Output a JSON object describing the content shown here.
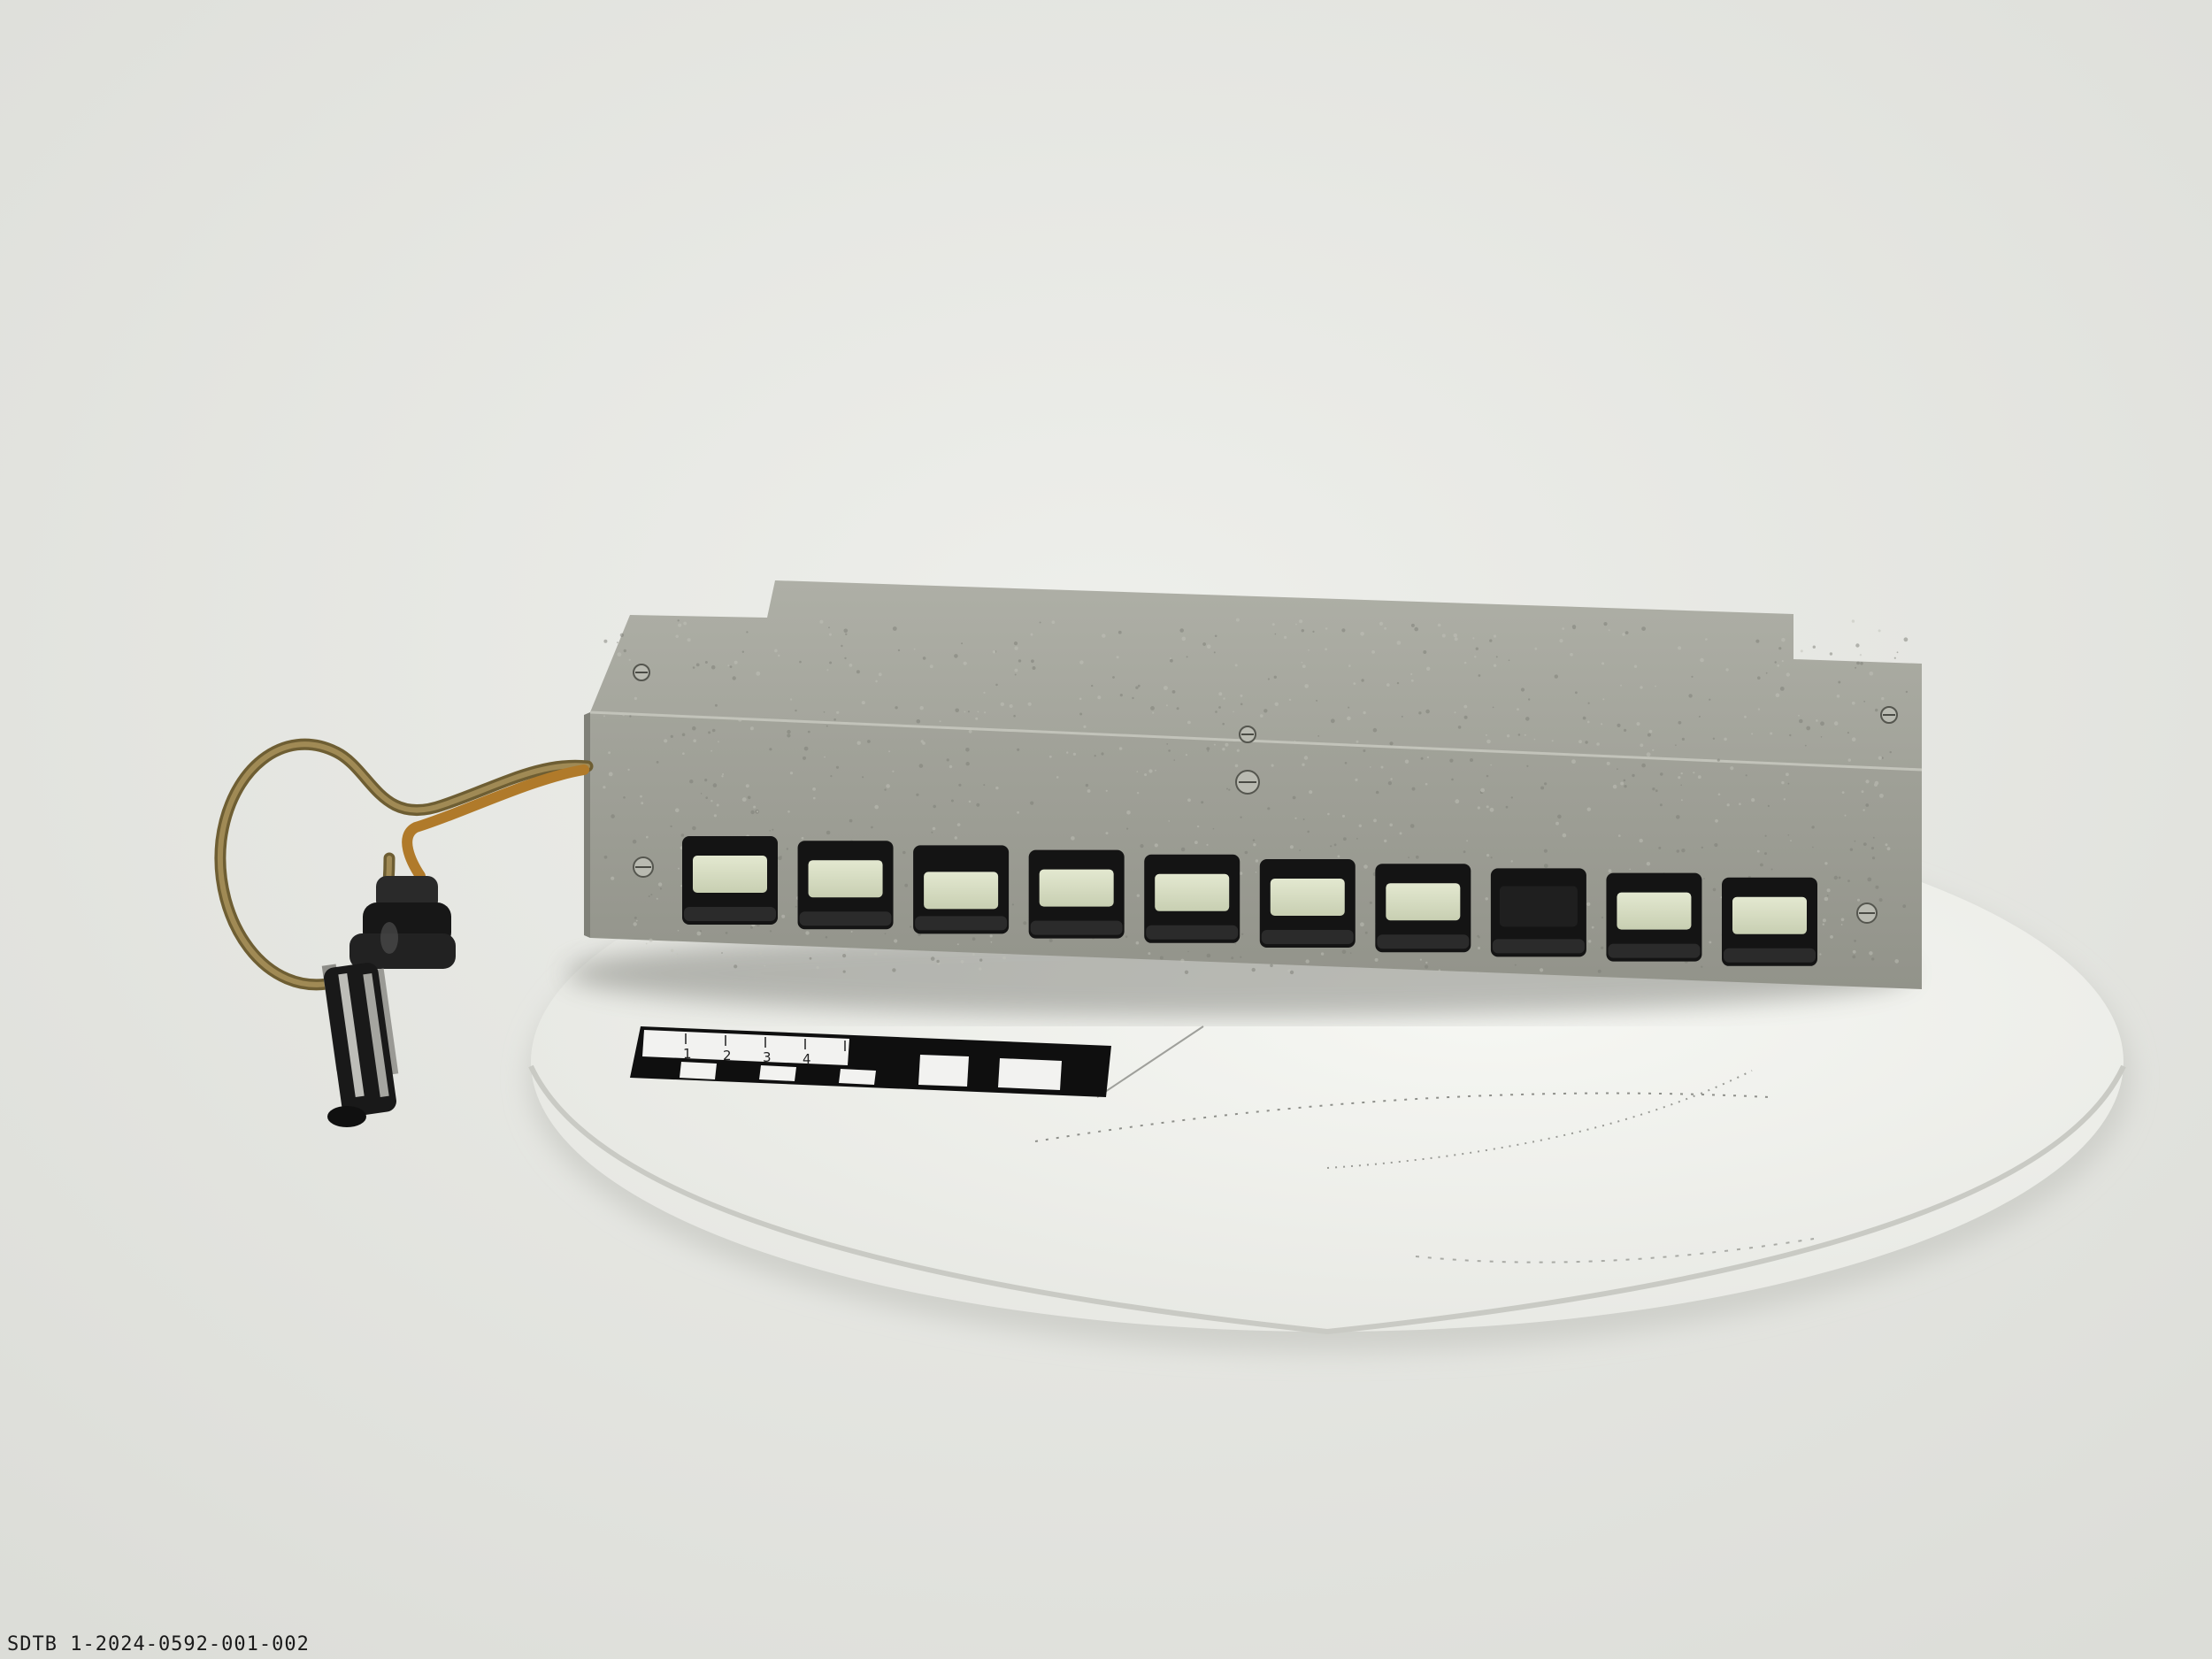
{
  "photo": {
    "caption": "SDTB 1-2024-0592-001-002",
    "button_count": 10,
    "ruler_numbers": [
      "1",
      "2",
      "3",
      "4"
    ],
    "colors": {
      "background": "#e7e8e4",
      "housing_front": "#9c9d94",
      "housing_top": "#a7a89f",
      "button_face": "#d6dcc2",
      "button_body": "#141414",
      "turntable": "#f1f2ee",
      "cable": "#8a7440",
      "plug": "#171717"
    }
  }
}
